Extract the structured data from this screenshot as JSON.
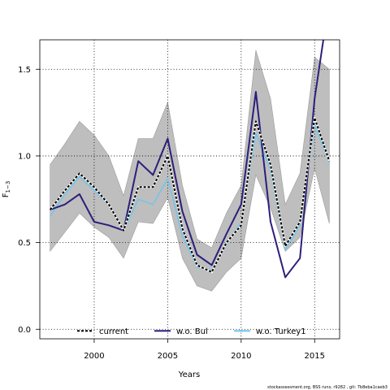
{
  "chart_data": {
    "type": "line",
    "xlabel": "Years",
    "ylabel_main": "F",
    "ylabel_sub": "1−3",
    "xlim": [
      1996.3,
      2016.7
    ],
    "ylim": [
      -0.055,
      1.67
    ],
    "x_ticks": [
      2000,
      2005,
      2010,
      2015
    ],
    "y_ticks": [
      0.0,
      0.5,
      1.0,
      1.5
    ],
    "y_tick_labels": [
      "0.0",
      "0.5",
      "1.0",
      "1.5"
    ],
    "grid": true,
    "legend_placement": "bottom",
    "years": [
      1997,
      1998,
      1999,
      2000,
      2001,
      2002,
      2003,
      2004,
      2005,
      2006,
      2007,
      2008,
      2009,
      2010,
      2011,
      2012,
      2013,
      2014,
      2015,
      2016
    ],
    "band": {
      "lower": [
        0.45,
        0.56,
        0.67,
        0.59,
        0.53,
        0.41,
        0.62,
        0.61,
        0.76,
        0.41,
        0.25,
        0.22,
        0.33,
        0.41,
        0.89,
        0.7,
        0.45,
        0.53,
        0.93,
        0.61
      ],
      "upper": [
        0.95,
        1.07,
        1.2,
        1.12,
        1.0,
        0.77,
        1.1,
        1.1,
        1.31,
        0.83,
        0.52,
        0.47,
        0.67,
        0.83,
        1.61,
        1.33,
        0.72,
        0.9,
        1.57,
        1.5
      ]
    },
    "series": [
      {
        "name": "current",
        "color": "#000000",
        "dashed": true,
        "values": [
          0.69,
          0.8,
          0.9,
          0.82,
          0.72,
          0.57,
          0.82,
          0.82,
          1.0,
          0.58,
          0.37,
          0.33,
          0.5,
          0.6,
          1.2,
          0.95,
          0.48,
          0.62,
          1.22,
          0.97
        ]
      },
      {
        "name": "w.o. Bul",
        "color": "#2b1f7a",
        "dashed": false,
        "values": [
          0.69,
          0.72,
          0.78,
          0.62,
          0.6,
          0.57,
          0.97,
          0.89,
          1.1,
          0.68,
          0.43,
          0.37,
          0.55,
          0.72,
          1.37,
          0.62,
          0.3,
          0.41,
          1.33,
          1.9
        ]
      },
      {
        "name": "w.o. Turkey1",
        "color": "#6fc6ee",
        "dashed": false,
        "values": [
          0.65,
          0.78,
          0.88,
          0.8,
          0.72,
          0.57,
          0.75,
          0.72,
          0.87,
          0.54,
          0.36,
          0.34,
          0.49,
          0.62,
          1.13,
          0.92,
          0.46,
          0.6,
          1.18,
          0.96
        ]
      }
    ]
  },
  "footer": "stockassessment.org, BSS runs, r9282 , git: 7b8eba1caeb3"
}
